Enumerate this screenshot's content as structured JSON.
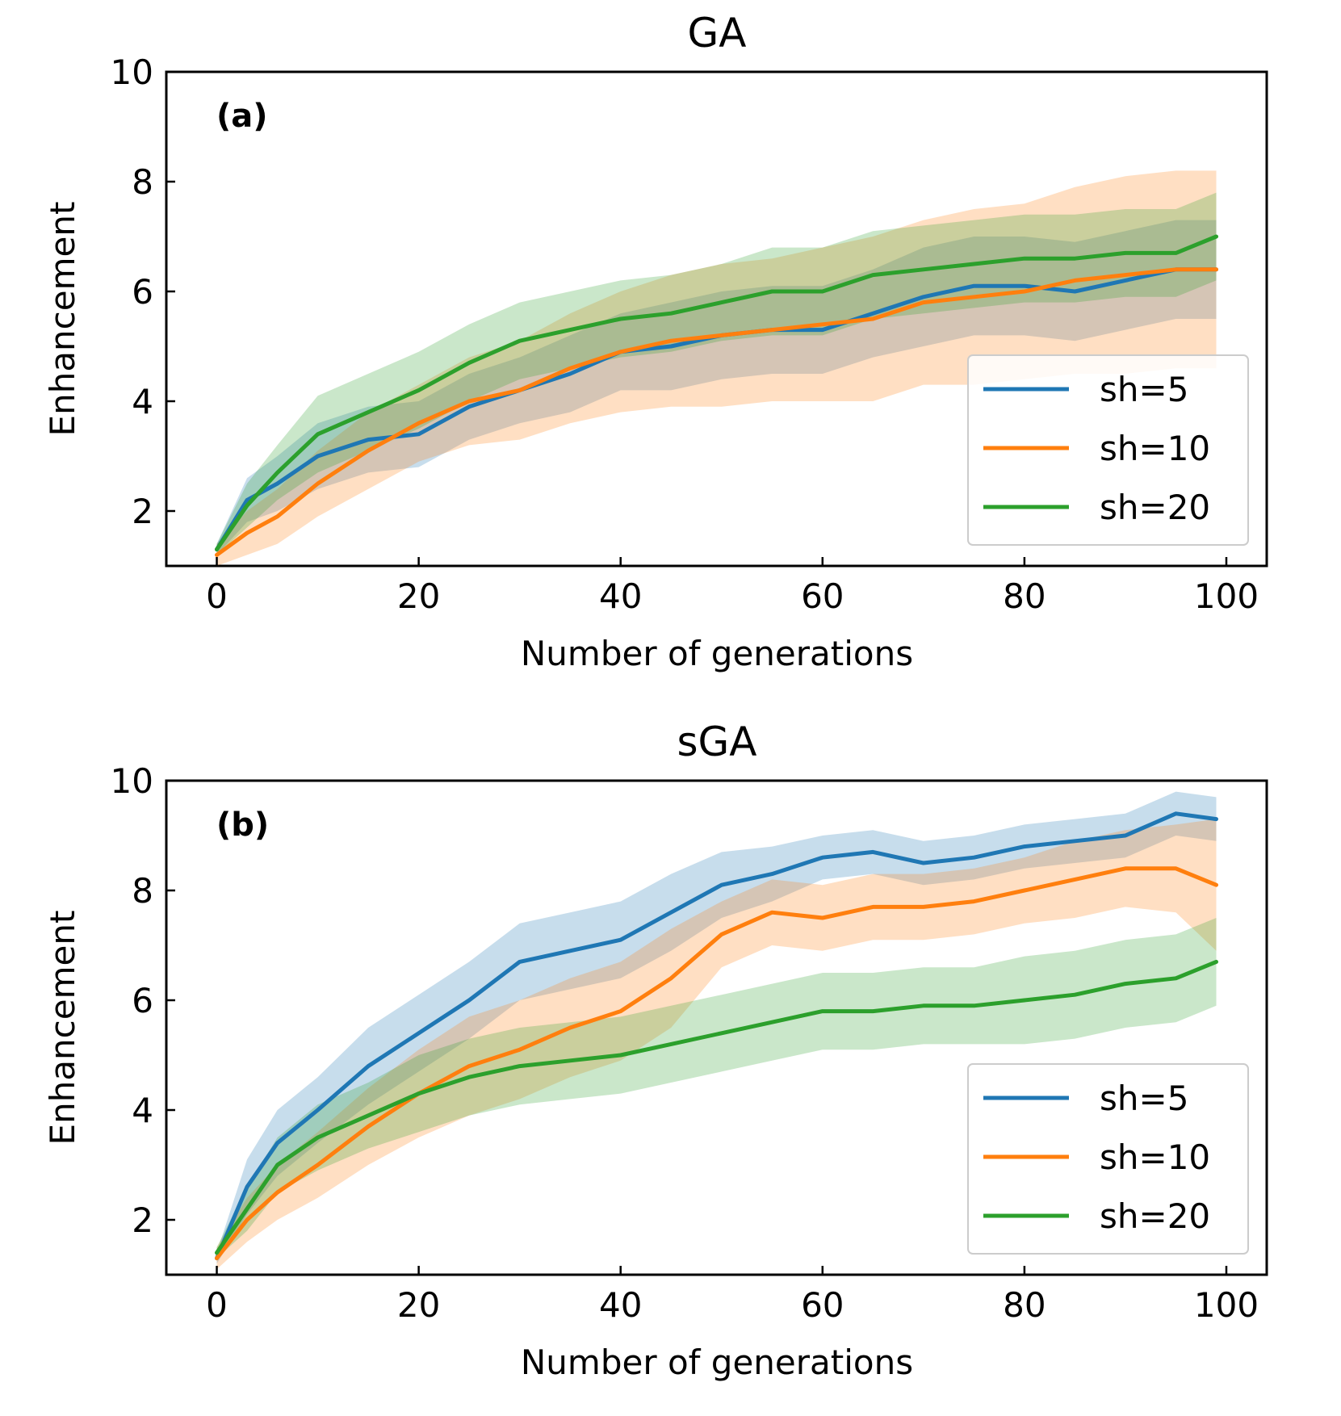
{
  "chart_data": [
    {
      "type": "line",
      "title": "GA",
      "panel_label": "(a)",
      "xlabel": "Number of generations",
      "ylabel": "Enhancement",
      "xlim": [
        -5,
        104
      ],
      "ylim": [
        1,
        10
      ],
      "xticks": [
        0,
        20,
        40,
        60,
        80,
        100
      ],
      "yticks": [
        2,
        4,
        6,
        8,
        10
      ],
      "legend": "lower-right",
      "grid": false,
      "series": [
        {
          "name": "sh=5",
          "color": "#1f77b4",
          "points": [
            [
              0,
              1.3
            ],
            [
              3,
              2.2
            ],
            [
              6,
              2.5
            ],
            [
              10,
              3.0
            ],
            [
              15,
              3.3
            ],
            [
              20,
              3.4
            ],
            [
              25,
              3.9
            ],
            [
              30,
              4.2
            ],
            [
              35,
              4.5
            ],
            [
              40,
              4.9
            ],
            [
              45,
              5.0
            ],
            [
              50,
              5.2
            ],
            [
              55,
              5.3
            ],
            [
              60,
              5.3
            ],
            [
              65,
              5.6
            ],
            [
              70,
              5.9
            ],
            [
              75,
              6.1
            ],
            [
              80,
              6.1
            ],
            [
              85,
              6.0
            ],
            [
              90,
              6.2
            ],
            [
              95,
              6.4
            ],
            [
              99,
              6.4
            ]
          ],
          "band_half_width": [
            0.1,
            0.4,
            0.5,
            0.6,
            0.6,
            0.6,
            0.6,
            0.6,
            0.7,
            0.7,
            0.8,
            0.8,
            0.8,
            0.8,
            0.8,
            0.9,
            0.9,
            0.9,
            0.9,
            0.9,
            0.9,
            0.9
          ]
        },
        {
          "name": "sh=10",
          "color": "#ff7f0e",
          "points": [
            [
              0,
              1.2
            ],
            [
              3,
              1.6
            ],
            [
              6,
              1.9
            ],
            [
              10,
              2.5
            ],
            [
              15,
              3.1
            ],
            [
              20,
              3.6
            ],
            [
              25,
              4.0
            ],
            [
              30,
              4.2
            ],
            [
              35,
              4.6
            ],
            [
              40,
              4.9
            ],
            [
              45,
              5.1
            ],
            [
              50,
              5.2
            ],
            [
              55,
              5.3
            ],
            [
              60,
              5.4
            ],
            [
              65,
              5.5
            ],
            [
              70,
              5.8
            ],
            [
              75,
              5.9
            ],
            [
              80,
              6.0
            ],
            [
              85,
              6.2
            ],
            [
              90,
              6.3
            ],
            [
              95,
              6.4
            ],
            [
              99,
              6.4
            ]
          ],
          "band_half_width": [
            0.2,
            0.4,
            0.5,
            0.6,
            0.7,
            0.7,
            0.8,
            0.9,
            1.0,
            1.1,
            1.2,
            1.3,
            1.3,
            1.4,
            1.5,
            1.5,
            1.6,
            1.6,
            1.7,
            1.8,
            1.8,
            1.8
          ]
        },
        {
          "name": "sh=20",
          "color": "#2ca02c",
          "points": [
            [
              0,
              1.3
            ],
            [
              3,
              2.1
            ],
            [
              6,
              2.7
            ],
            [
              10,
              3.4
            ],
            [
              15,
              3.8
            ],
            [
              20,
              4.2
            ],
            [
              25,
              4.7
            ],
            [
              30,
              5.1
            ],
            [
              35,
              5.3
            ],
            [
              40,
              5.5
            ],
            [
              45,
              5.6
            ],
            [
              50,
              5.8
            ],
            [
              55,
              6.0
            ],
            [
              60,
              6.0
            ],
            [
              65,
              6.3
            ],
            [
              70,
              6.4
            ],
            [
              75,
              6.5
            ],
            [
              80,
              6.6
            ],
            [
              85,
              6.6
            ],
            [
              90,
              6.7
            ],
            [
              95,
              6.7
            ],
            [
              99,
              7.0
            ]
          ],
          "band_half_width": [
            0.1,
            0.4,
            0.5,
            0.7,
            0.7,
            0.7,
            0.7,
            0.7,
            0.7,
            0.7,
            0.7,
            0.7,
            0.8,
            0.8,
            0.8,
            0.8,
            0.8,
            0.8,
            0.8,
            0.8,
            0.8,
            0.8
          ]
        }
      ]
    },
    {
      "type": "line",
      "title": "sGA",
      "panel_label": "(b)",
      "xlabel": "Number of generations",
      "ylabel": "Enhancement",
      "xlim": [
        -5,
        104
      ],
      "ylim": [
        1,
        10
      ],
      "xticks": [
        0,
        20,
        40,
        60,
        80,
        100
      ],
      "yticks": [
        2,
        4,
        6,
        8,
        10
      ],
      "legend": "lower-right",
      "grid": false,
      "series": [
        {
          "name": "sh=5",
          "color": "#1f77b4",
          "points": [
            [
              0,
              1.3
            ],
            [
              3,
              2.6
            ],
            [
              6,
              3.4
            ],
            [
              10,
              4.0
            ],
            [
              15,
              4.8
            ],
            [
              20,
              5.4
            ],
            [
              25,
              6.0
            ],
            [
              30,
              6.7
            ],
            [
              35,
              6.9
            ],
            [
              40,
              7.1
            ],
            [
              45,
              7.6
            ],
            [
              50,
              8.1
            ],
            [
              55,
              8.3
            ],
            [
              60,
              8.6
            ],
            [
              65,
              8.7
            ],
            [
              70,
              8.5
            ],
            [
              75,
              8.6
            ],
            [
              80,
              8.8
            ],
            [
              85,
              8.9
            ],
            [
              90,
              9.0
            ],
            [
              95,
              9.4
            ],
            [
              99,
              9.3
            ]
          ],
          "band_half_width": [
            0.1,
            0.5,
            0.6,
            0.6,
            0.7,
            0.7,
            0.7,
            0.7,
            0.7,
            0.7,
            0.7,
            0.6,
            0.5,
            0.4,
            0.4,
            0.4,
            0.4,
            0.4,
            0.4,
            0.4,
            0.4,
            0.4
          ]
        },
        {
          "name": "sh=10",
          "color": "#ff7f0e",
          "points": [
            [
              0,
              1.3
            ],
            [
              3,
              2.0
            ],
            [
              6,
              2.5
            ],
            [
              10,
              3.0
            ],
            [
              15,
              3.7
            ],
            [
              20,
              4.3
            ],
            [
              25,
              4.8
            ],
            [
              30,
              5.1
            ],
            [
              35,
              5.5
            ],
            [
              40,
              5.8
            ],
            [
              45,
              6.4
            ],
            [
              50,
              7.2
            ],
            [
              55,
              7.6
            ],
            [
              60,
              7.5
            ],
            [
              65,
              7.7
            ],
            [
              70,
              7.7
            ],
            [
              75,
              7.8
            ],
            [
              80,
              8.0
            ],
            [
              85,
              8.2
            ],
            [
              90,
              8.4
            ],
            [
              95,
              8.4
            ],
            [
              99,
              8.1
            ]
          ],
          "band_half_width": [
            0.2,
            0.4,
            0.5,
            0.6,
            0.7,
            0.8,
            0.9,
            0.9,
            0.9,
            0.9,
            0.9,
            0.6,
            0.6,
            0.6,
            0.6,
            0.6,
            0.6,
            0.6,
            0.7,
            0.7,
            0.8,
            1.2
          ]
        },
        {
          "name": "sh=20",
          "color": "#2ca02c",
          "points": [
            [
              0,
              1.4
            ],
            [
              3,
              2.2
            ],
            [
              6,
              3.0
            ],
            [
              10,
              3.5
            ],
            [
              15,
              3.9
            ],
            [
              20,
              4.3
            ],
            [
              25,
              4.6
            ],
            [
              30,
              4.8
            ],
            [
              35,
              4.9
            ],
            [
              40,
              5.0
            ],
            [
              45,
              5.2
            ],
            [
              50,
              5.4
            ],
            [
              55,
              5.6
            ],
            [
              60,
              5.8
            ],
            [
              65,
              5.8
            ],
            [
              70,
              5.9
            ],
            [
              75,
              5.9
            ],
            [
              80,
              6.0
            ],
            [
              85,
              6.1
            ],
            [
              90,
              6.3
            ],
            [
              95,
              6.4
            ],
            [
              99,
              6.7
            ]
          ],
          "band_half_width": [
            0.1,
            0.4,
            0.5,
            0.6,
            0.6,
            0.7,
            0.7,
            0.7,
            0.7,
            0.7,
            0.7,
            0.7,
            0.7,
            0.7,
            0.7,
            0.7,
            0.7,
            0.8,
            0.8,
            0.8,
            0.8,
            0.8
          ]
        }
      ]
    }
  ]
}
